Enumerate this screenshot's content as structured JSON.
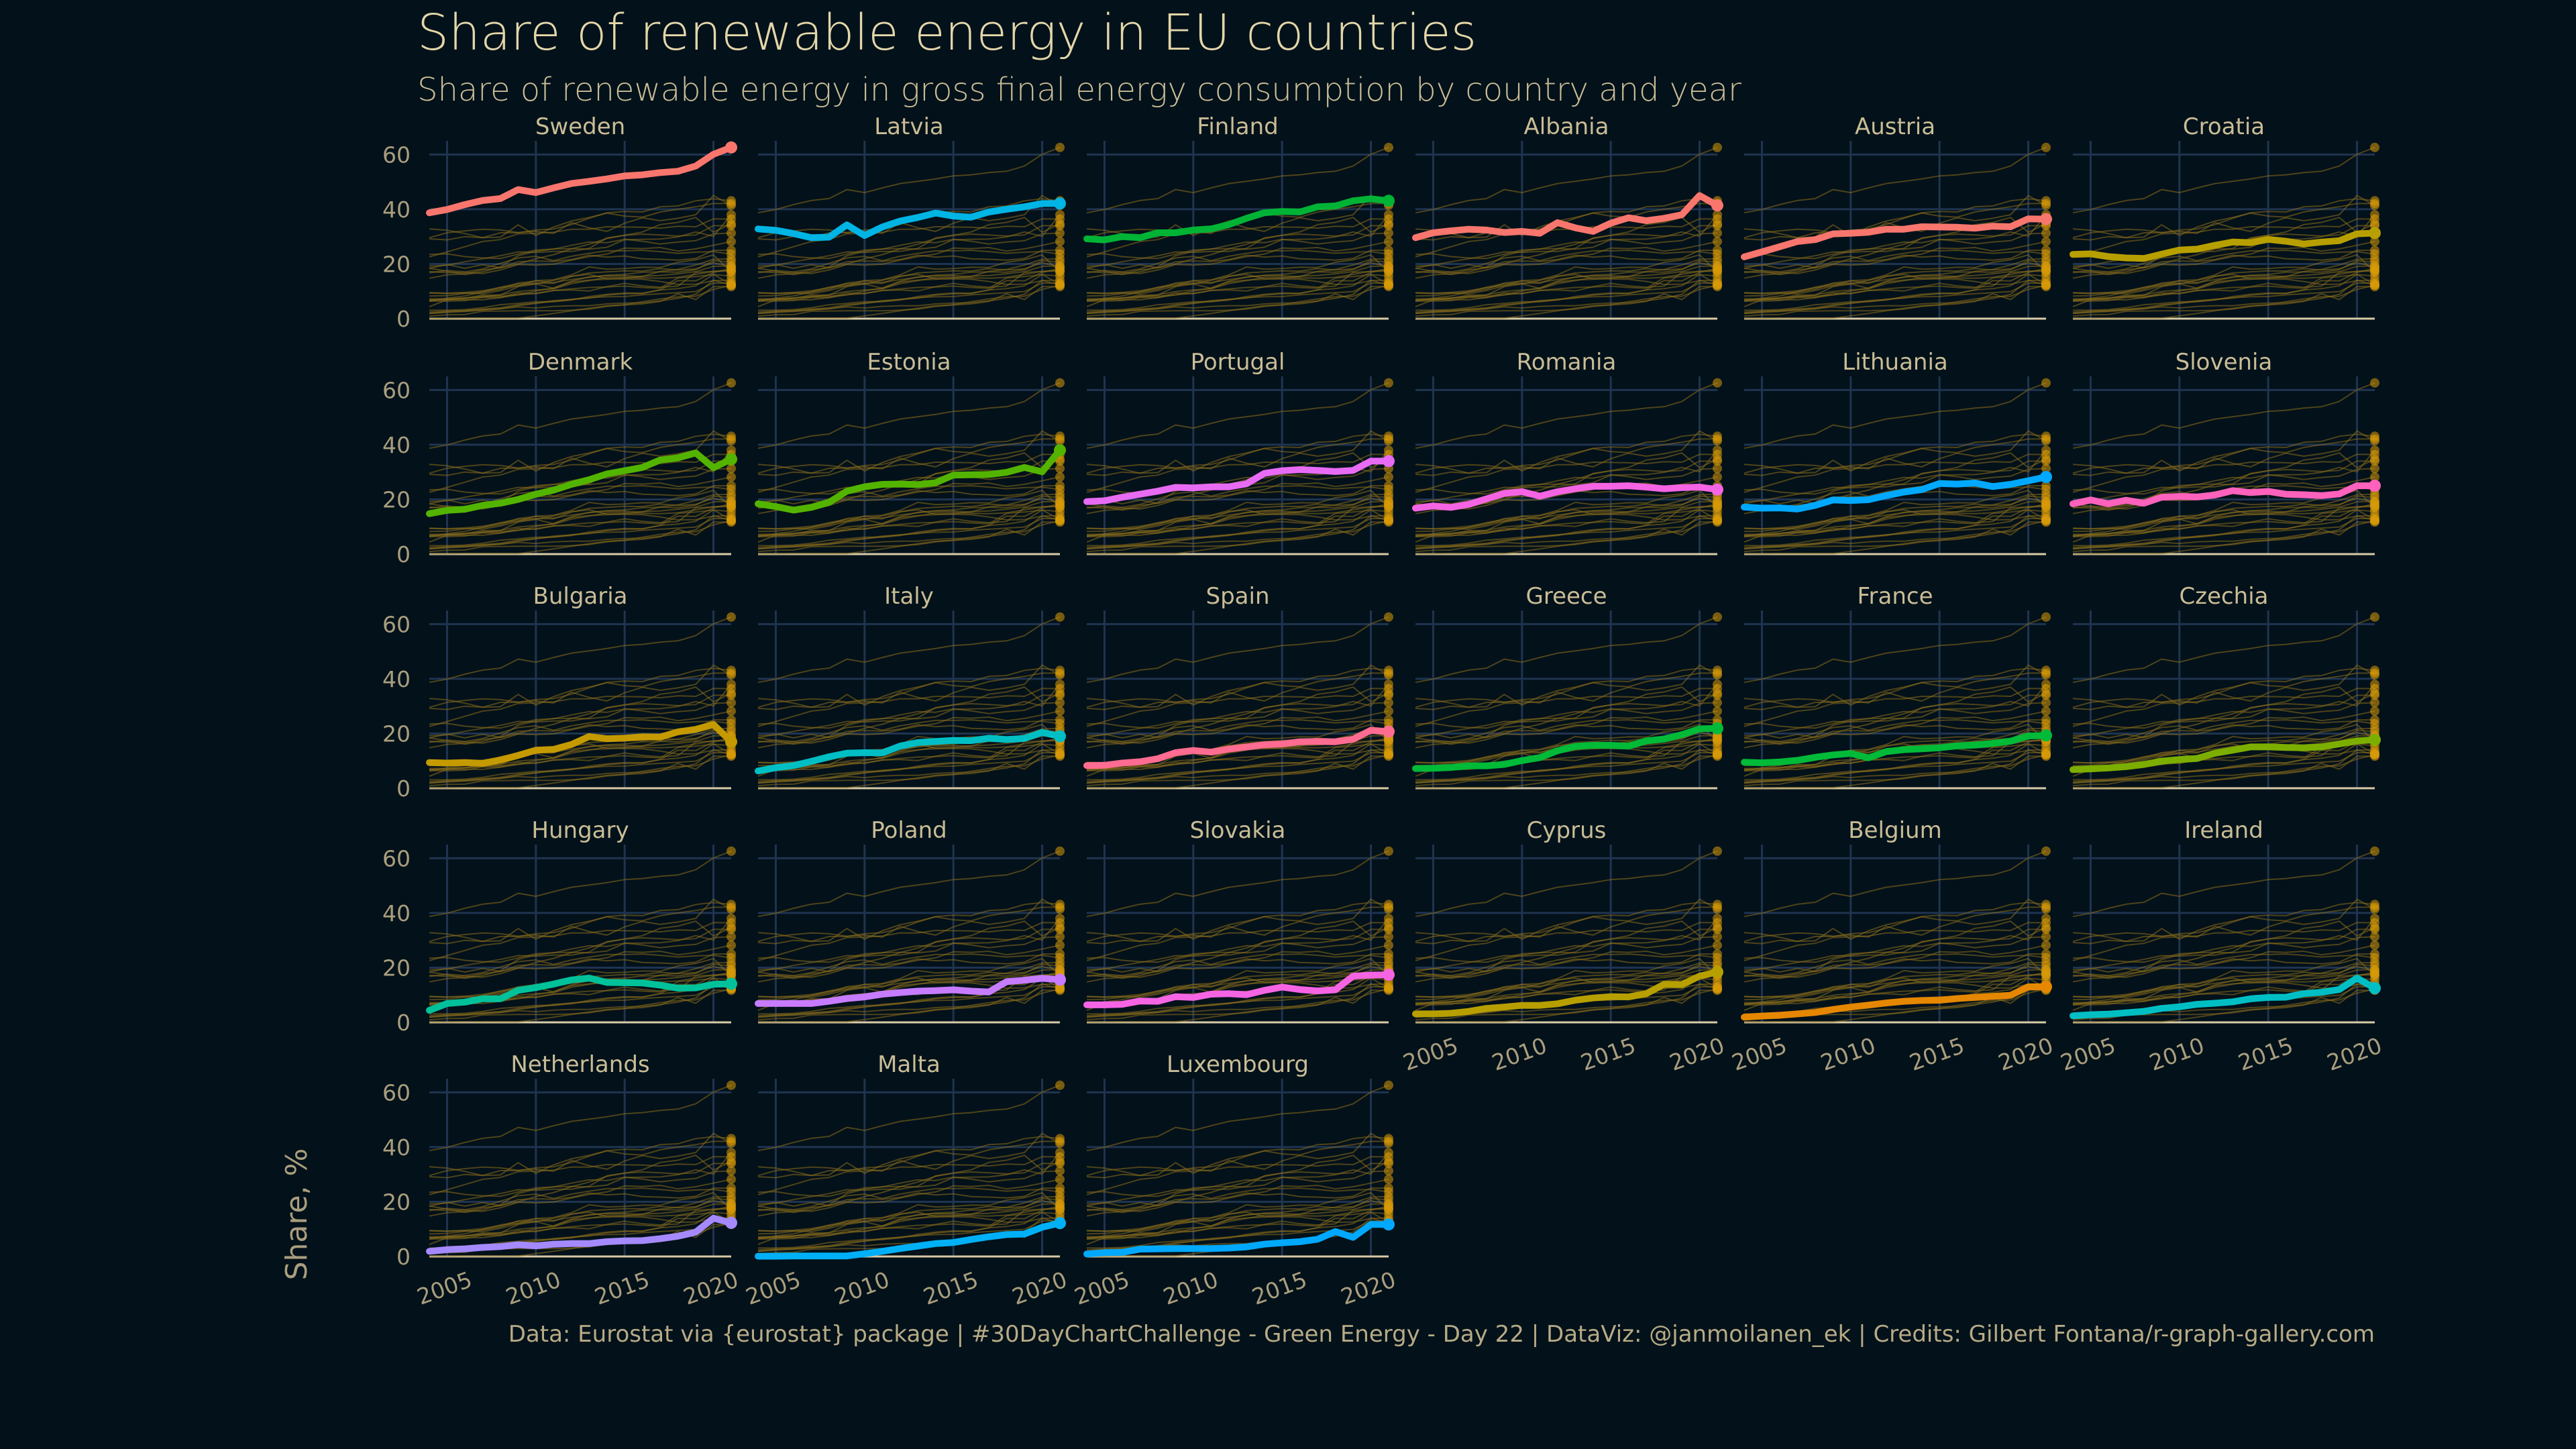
{
  "chart_data": {
    "type": "line",
    "title": "Share of renewable energy in EU countries",
    "subtitle": "Share of renewable energy in gross final energy consumption by country and year",
    "ylabel": "Share, %",
    "xlabel": "",
    "caption": "Data: Eurostat via {eurostat} package | #30DayChartChallenge - Green Energy - Day 22  |  DataViz: @janmoilanen_ek  | Credits: Gilbert Fontana/r-graph-gallery.com",
    "xlim": [
      2004,
      2021
    ],
    "ylim": [
      0,
      65
    ],
    "x_ticks": [
      2005,
      2010,
      2015,
      2020
    ],
    "y_ticks": [
      0,
      20,
      40,
      60
    ],
    "grid": true,
    "background_line_color": "#8a6d1c",
    "end_point_color": "#d99a08",
    "x": [
      2004,
      2005,
      2006,
      2007,
      2008,
      2009,
      2010,
      2011,
      2012,
      2013,
      2014,
      2015,
      2016,
      2017,
      2018,
      2019,
      2020,
      2021
    ],
    "series": [
      {
        "name": "Sweden",
        "color": "#f8766d",
        "values": [
          38.7,
          39.9,
          41.7,
          43.2,
          43.9,
          47.2,
          46.1,
          47.8,
          49.4,
          50.2,
          51.1,
          52.2,
          52.6,
          53.4,
          53.9,
          55.8,
          60.1,
          62.6
        ]
      },
      {
        "name": "Latvia",
        "color": "#00b4e4",
        "values": [
          32.8,
          32.3,
          31.1,
          29.6,
          29.8,
          34.3,
          30.4,
          33.5,
          35.7,
          37.0,
          38.6,
          37.5,
          37.1,
          39.0,
          40.0,
          40.9,
          42.1,
          42.1
        ]
      },
      {
        "name": "Finland",
        "color": "#00b335",
        "values": [
          29.2,
          28.8,
          30.0,
          29.6,
          31.4,
          31.4,
          32.4,
          32.8,
          34.4,
          36.7,
          38.7,
          39.2,
          39.0,
          40.9,
          41.2,
          43.1,
          43.8,
          43.1
        ]
      },
      {
        "name": "Albania",
        "color": "#f8766d",
        "values": [
          29.6,
          31.4,
          32.1,
          32.7,
          32.4,
          31.5,
          31.9,
          31.2,
          35.1,
          33.2,
          31.9,
          34.9,
          36.9,
          35.8,
          36.7,
          38.0,
          45.0,
          41.4
        ]
      },
      {
        "name": "Austria",
        "color": "#f8766d",
        "values": [
          22.6,
          24.4,
          26.3,
          28.2,
          28.9,
          31.0,
          31.2,
          31.6,
          32.7,
          32.7,
          33.6,
          33.5,
          33.4,
          33.1,
          33.8,
          33.6,
          36.5,
          36.4
        ]
      },
      {
        "name": "Croatia",
        "color": "#b79f00",
        "values": [
          23.5,
          23.7,
          22.7,
          22.2,
          22.0,
          23.6,
          25.1,
          25.4,
          26.8,
          28.0,
          27.8,
          29.0,
          28.3,
          27.3,
          28.0,
          28.5,
          31.0,
          31.3
        ]
      },
      {
        "name": "Denmark",
        "color": "#53b400",
        "values": [
          14.8,
          16.0,
          16.4,
          17.8,
          18.6,
          20.0,
          21.9,
          23.4,
          25.5,
          27.2,
          29.3,
          30.5,
          31.7,
          34.4,
          35.2,
          37.0,
          31.6,
          34.7
        ]
      },
      {
        "name": "Estonia",
        "color": "#53b400",
        "values": [
          18.4,
          17.4,
          16.1,
          17.1,
          18.9,
          23.0,
          24.6,
          25.5,
          25.6,
          25.4,
          26.1,
          28.9,
          29.0,
          29.1,
          29.9,
          31.7,
          30.1,
          38.0
        ]
      },
      {
        "name": "Portugal",
        "color": "#e76bf3",
        "values": [
          19.2,
          19.5,
          20.8,
          21.9,
          23.0,
          24.4,
          24.2,
          24.6,
          24.6,
          25.7,
          29.5,
          30.5,
          30.9,
          30.6,
          30.2,
          30.6,
          34.0,
          34.0
        ]
      },
      {
        "name": "Romania",
        "color": "#f564e3",
        "values": [
          16.8,
          17.6,
          17.1,
          18.2,
          20.2,
          22.2,
          22.8,
          21.2,
          22.8,
          23.9,
          24.8,
          24.8,
          25.0,
          24.5,
          23.9,
          24.3,
          24.5,
          23.6
        ]
      },
      {
        "name": "Lithuania",
        "color": "#00a9ff",
        "values": [
          17.2,
          16.8,
          16.9,
          16.5,
          17.8,
          19.8,
          19.6,
          19.9,
          21.4,
          22.7,
          23.6,
          25.8,
          25.6,
          26.0,
          24.7,
          25.5,
          26.8,
          28.2
        ]
      },
      {
        "name": "Slovenia",
        "color": "#ff62bc",
        "values": [
          18.4,
          19.8,
          18.4,
          19.7,
          18.6,
          20.8,
          21.1,
          20.9,
          21.6,
          23.2,
          22.5,
          22.9,
          21.9,
          21.7,
          21.4,
          22.0,
          25.0,
          25.0
        ]
      },
      {
        "name": "Bulgaria",
        "color": "#c49a00",
        "values": [
          9.4,
          9.2,
          9.4,
          9.1,
          10.3,
          12.0,
          13.9,
          14.2,
          16.0,
          18.9,
          18.1,
          18.3,
          18.8,
          18.7,
          20.6,
          21.5,
          23.3,
          17.0
        ]
      },
      {
        "name": "Italy",
        "color": "#00bfc4",
        "values": [
          6.3,
          7.5,
          8.3,
          9.8,
          11.5,
          12.8,
          13.0,
          12.9,
          15.4,
          16.7,
          17.1,
          17.5,
          17.4,
          18.3,
          17.8,
          18.2,
          20.4,
          19.0
        ]
      },
      {
        "name": "Spain",
        "color": "#ff6c91",
        "values": [
          8.3,
          8.4,
          9.2,
          9.7,
          10.8,
          13.0,
          13.8,
          13.2,
          14.3,
          15.1,
          15.9,
          16.2,
          17.0,
          17.1,
          17.0,
          17.9,
          21.2,
          20.7
        ]
      },
      {
        "name": "Greece",
        "color": "#00ba38",
        "values": [
          7.2,
          7.3,
          7.6,
          8.2,
          8.2,
          8.7,
          10.1,
          11.2,
          13.7,
          15.3,
          15.7,
          15.7,
          15.4,
          17.3,
          18.0,
          19.6,
          21.7,
          21.9
        ]
      },
      {
        "name": "France",
        "color": "#00ba38",
        "values": [
          9.5,
          9.3,
          9.6,
          10.2,
          11.3,
          12.2,
          12.7,
          11.1,
          13.4,
          14.1,
          14.4,
          14.8,
          15.5,
          15.8,
          16.4,
          17.2,
          19.1,
          19.3
        ]
      },
      {
        "name": "Czechia",
        "color": "#7cae00",
        "values": [
          6.8,
          7.1,
          7.4,
          7.9,
          8.7,
          9.9,
          10.5,
          10.9,
          12.8,
          13.9,
          15.1,
          15.1,
          14.9,
          14.8,
          15.1,
          16.2,
          17.3,
          17.7
        ]
      },
      {
        "name": "Hungary",
        "color": "#00c19a",
        "values": [
          4.4,
          6.9,
          7.4,
          8.6,
          8.6,
          11.7,
          12.7,
          14.0,
          15.5,
          16.2,
          14.6,
          14.5,
          14.4,
          13.6,
          12.5,
          12.6,
          13.9,
          14.1
        ]
      },
      {
        "name": "Poland",
        "color": "#c77cff",
        "values": [
          6.9,
          6.9,
          6.9,
          6.9,
          7.7,
          8.7,
          9.3,
          10.3,
          10.9,
          11.4,
          11.6,
          11.9,
          11.4,
          11.1,
          14.9,
          15.4,
          16.1,
          15.6
        ]
      },
      {
        "name": "Slovakia",
        "color": "#f564e3",
        "values": [
          6.4,
          6.4,
          6.6,
          7.8,
          7.7,
          9.4,
          9.1,
          10.3,
          10.5,
          10.1,
          11.7,
          12.9,
          12.0,
          11.5,
          11.9,
          16.9,
          17.3,
          17.4
        ]
      },
      {
        "name": "Cyprus",
        "color": "#b79f00",
        "values": [
          3.1,
          3.1,
          3.3,
          4.0,
          5.1,
          5.6,
          6.2,
          6.2,
          6.8,
          8.1,
          8.9,
          9.4,
          9.3,
          10.5,
          13.9,
          13.8,
          16.9,
          18.4
        ]
      },
      {
        "name": "Belgium",
        "color": "#e58700",
        "values": [
          1.9,
          2.3,
          2.6,
          3.1,
          3.6,
          4.7,
          5.6,
          6.3,
          7.1,
          7.7,
          8.0,
          8.1,
          8.7,
          9.1,
          9.5,
          9.9,
          13.0,
          13.0
        ]
      },
      {
        "name": "Ireland",
        "color": "#00bfc4",
        "values": [
          2.4,
          2.8,
          3.0,
          3.5,
          4.0,
          5.1,
          5.7,
          6.6,
          7.0,
          7.5,
          8.6,
          9.1,
          9.2,
          10.5,
          11.0,
          12.0,
          16.2,
          12.5
        ]
      },
      {
        "name": "Netherlands",
        "color": "#a58aff",
        "values": [
          1.9,
          2.5,
          2.8,
          3.3,
          3.6,
          4.3,
          3.9,
          4.5,
          4.7,
          4.7,
          5.4,
          5.7,
          5.8,
          6.5,
          7.4,
          8.9,
          14.0,
          12.3
        ]
      },
      {
        "name": "Malta",
        "color": "#00b0f6",
        "values": [
          0.1,
          0.1,
          0.2,
          0.2,
          0.2,
          0.2,
          1.0,
          1.9,
          2.9,
          3.8,
          4.7,
          5.1,
          6.2,
          7.2,
          8.0,
          8.2,
          10.7,
          12.2
        ]
      },
      {
        "name": "Luxembourg",
        "color": "#00a9ff",
        "values": [
          0.9,
          1.4,
          1.5,
          2.7,
          2.8,
          2.9,
          2.9,
          2.9,
          3.1,
          3.5,
          4.5,
          5.0,
          5.4,
          6.3,
          9.1,
          7.0,
          11.7,
          11.7
        ]
      }
    ]
  }
}
